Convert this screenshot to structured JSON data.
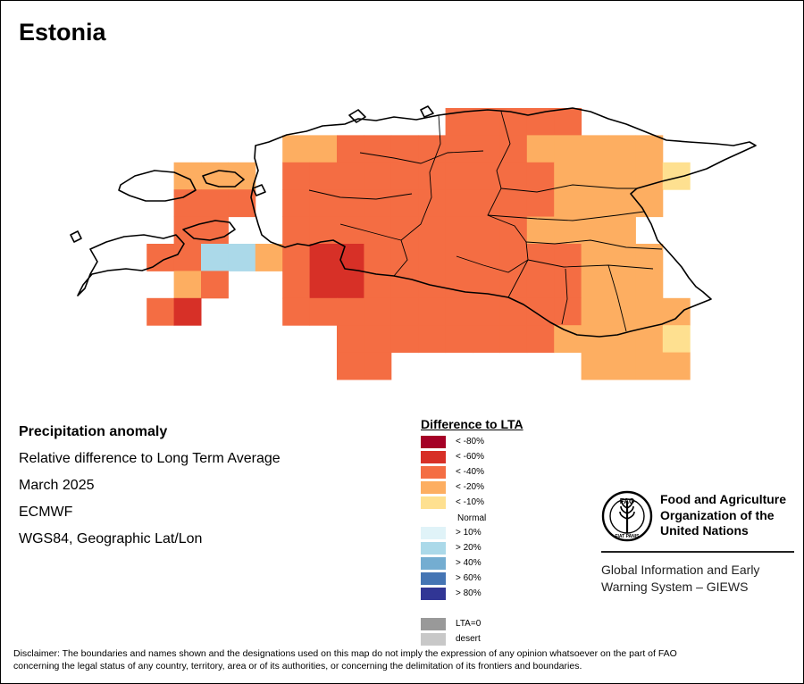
{
  "title": "Estonia",
  "info": {
    "heading": "Precipitation anomaly",
    "subtitle": "Relative difference to Long Term Average",
    "period": "March 2025",
    "source": "ECMWF",
    "projection": "WGS84, Geographic Lat/Lon"
  },
  "legend": {
    "title": "Difference to LTA",
    "items": [
      {
        "label": "< -80%",
        "color": "#a50026"
      },
      {
        "label": "< -60%",
        "color": "#d73027"
      },
      {
        "label": "< -40%",
        "color": "#f46d43"
      },
      {
        "label": "< -20%",
        "color": "#fdae61"
      },
      {
        "label": "< -10%",
        "color": "#fee090"
      },
      {
        "label": "Normal",
        "color": "#ffffff"
      },
      {
        "label": "> 10%",
        "color": "#e0f3f8"
      },
      {
        "label": "> 20%",
        "color": "#abd9e9"
      },
      {
        "label": "> 40%",
        "color": "#74add1"
      },
      {
        "label": "> 60%",
        "color": "#4575b4"
      },
      {
        "label": "> 80%",
        "color": "#313695"
      },
      {
        "label": "LTA=0",
        "color": "#999999"
      },
      {
        "label": "desert",
        "color": "#c8c8c8"
      }
    ]
  },
  "organization": {
    "logo_text": "FAO",
    "logo_motto": "FIAT PANIS",
    "name_line1": "Food and Agriculture",
    "name_line2": "Organization of the",
    "name_line3": "United Nations",
    "system_line1": "Global Information and Early",
    "system_line2": "Warning System – GIEWS"
  },
  "disclaimer_line1": "Disclaimer: The boundaries and names shown and the designations used on this map do not imply the expression of any opinion whatsoever on the part of FAO",
  "disclaimer_line2": "concerning the legal status of any country, territory, area or of its authorities, or concerning the delimitation of its frontiers and boundaries.",
  "map": {
    "region": "Estonia",
    "category_colors": {
      "a": "#a50026",
      "b": "#d73027",
      "c": "#f46d43",
      "d": "#fdae61",
      "e": "#fee090",
      "n": "#ffffff",
      "f": "#e0f3f8",
      "g": "#abd9e9"
    },
    "grid_rows": [
      "..............ccccc....",
      "........ddcccccccddddd.",
      "....ddd.ccccccccccdddde",
      "....ccc.ccccccccccdddd.",
      "....cc..cccccccccdddd..",
      "...ccggdcbbccccccccddd.",
      "....dc..cbbccccccccddd.",
      "...cb...cccccccccccdddd",
      "..........ccccccccdddde",
      "..........cc.......dddd"
    ]
  }
}
